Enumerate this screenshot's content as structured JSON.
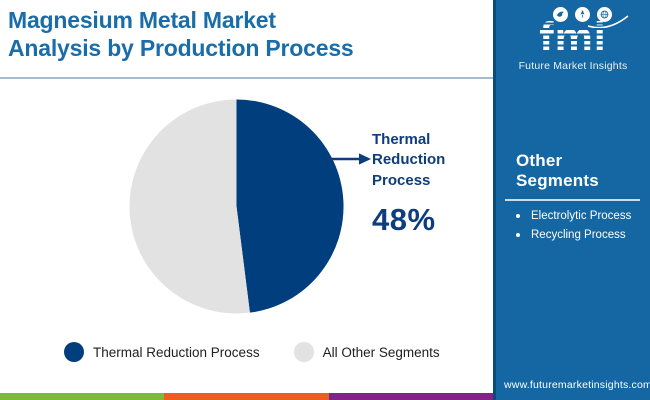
{
  "header": {
    "title_line1": "Magnesium Metal Market",
    "title_line2": "Analysis by Production Process",
    "title_color": "#1a6da9"
  },
  "brand": {
    "name": "fmi",
    "tagline": "Future Market Insights",
    "icons": [
      "bird-icon",
      "rocket-icon",
      "globe-icon"
    ]
  },
  "chart_data": {
    "type": "pie",
    "title": "Magnesium Metal Market Analysis by Production Process",
    "slices": [
      {
        "label": "Thermal Reduction Process",
        "value": 48,
        "color": "#003e7d"
      },
      {
        "label": "All Other Segments",
        "value": 52,
        "color": "#e2e2e2"
      }
    ],
    "start_angle_deg": 0,
    "direction": "clockwise",
    "callout": {
      "label": "Thermal Reduction Process",
      "value_label": "48%",
      "target_slice": "Thermal Reduction Process"
    },
    "legend": {
      "position": "bottom",
      "entries": [
        "Thermal Reduction Process",
        "All Other Segments"
      ]
    }
  },
  "sidebar": {
    "background": "#1467a3",
    "heading": "Other Segments",
    "items": [
      {
        "label": "Electrolytic Process"
      },
      {
        "label": "Recycling Process"
      }
    ],
    "website": "www.futuremarketinsights.com"
  },
  "footer": {
    "stripe_colors": [
      "#7db93f",
      "#ee5b24",
      "#822487"
    ]
  },
  "colors": {
    "accent_navy": "#0d3d7c",
    "title_divider": "#a5bccd",
    "legend_text": "#202020"
  }
}
